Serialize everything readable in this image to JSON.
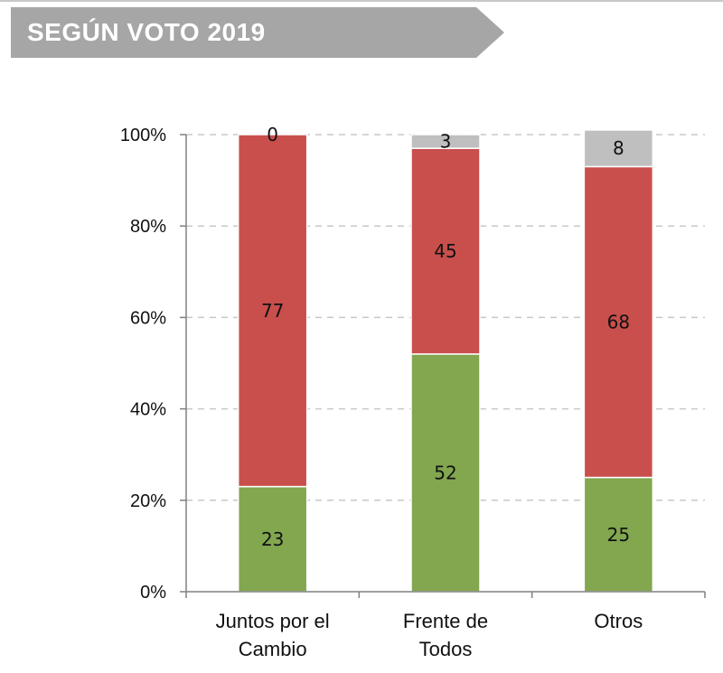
{
  "header": {
    "title": "SEGÚN VOTO 2019"
  },
  "colors": {
    "green": "#82a74f",
    "red": "#c84f4c",
    "gray": "#bfbfbf",
    "banner": "#a6a6a6"
  },
  "chart_data": {
    "type": "bar",
    "stacked": true,
    "title": "SEGÚN VOTO 2019",
    "categories": [
      {
        "lines": [
          "Juntos por el",
          "Cambio"
        ]
      },
      {
        "lines": [
          "Frente de",
          "Todos"
        ]
      },
      {
        "lines": [
          "Otros"
        ]
      }
    ],
    "series": [
      {
        "name": "green",
        "color": "#82a74f",
        "values": [
          23,
          52,
          25
        ]
      },
      {
        "name": "red",
        "color": "#c84f4c",
        "values": [
          77,
          45,
          68
        ]
      },
      {
        "name": "gray",
        "color": "#bfbfbf",
        "values": [
          0,
          3,
          8
        ]
      }
    ],
    "yticks": [
      "0%",
      "20%",
      "40%",
      "60%",
      "80%",
      "100%"
    ],
    "ylim": [
      0,
      100
    ],
    "grid": true,
    "legend": "none",
    "xlabel": "",
    "ylabel": ""
  }
}
